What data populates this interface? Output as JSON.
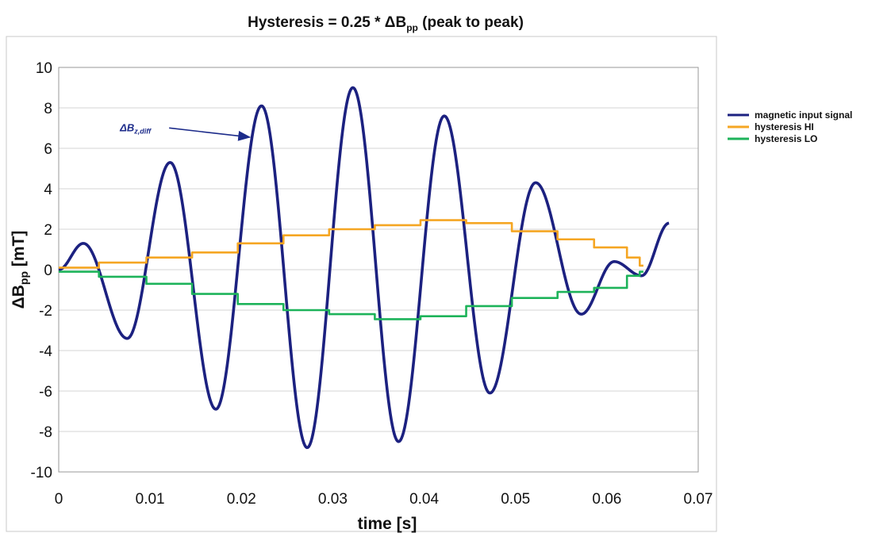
{
  "chart_data": {
    "type": "line",
    "title": "Hysteresis = 0.25 * ΔB",
    "title_sub": "pp",
    "title_suffix": " (peak to peak)",
    "xlabel": "time [s]",
    "ylabel": "ΔB",
    "ylabel_sub": "pp",
    "ylabel_suffix": " [mT]",
    "xlim": [
      0,
      0.07
    ],
    "ylim": [
      -10,
      10
    ],
    "x_ticks": [
      0,
      0.01,
      0.02,
      0.03,
      0.04,
      0.05,
      0.06,
      0.07
    ],
    "y_ticks": [
      -10,
      -8,
      -6,
      -4,
      -2,
      0,
      2,
      4,
      6,
      8,
      10
    ],
    "x_tick_labels": [
      "0",
      "0.01",
      "0.02",
      "0.03",
      "0.04",
      "0.05",
      "0.06",
      "0.07"
    ],
    "y_tick_labels": [
      "-10",
      "-8",
      "-6",
      "-4",
      "-2",
      "0",
      "2",
      "4",
      "6",
      "8",
      "10"
    ],
    "grid": "horizontal",
    "legend_position": "right",
    "annotation": {
      "text": "ΔB",
      "sub": "z,diff",
      "x": 0.0067,
      "y": 6.85,
      "arrow_to": [
        0.0209,
        6.55
      ]
    },
    "series": [
      {
        "name": "magnetic input signal",
        "color": "#1c2180",
        "x": [
          0,
          0.0027,
          0.0075,
          0.0122,
          0.0172,
          0.0222,
          0.0272,
          0.0322,
          0.0372,
          0.0422,
          0.0472,
          0.0522,
          0.0572,
          0.0608,
          0.0638,
          0.0668
        ],
        "y": [
          0,
          1.3,
          -3.4,
          5.3,
          -6.9,
          8.1,
          -8.8,
          9.0,
          -8.5,
          7.6,
          -6.1,
          4.3,
          -2.2,
          0.4,
          -0.3,
          2.3
        ]
      },
      {
        "name": "hysteresis HI",
        "color": "#f5a623",
        "step_x": [
          0,
          0.0044,
          0.0096,
          0.0146,
          0.0196,
          0.0246,
          0.0296,
          0.0346,
          0.0396,
          0.0446,
          0.0496,
          0.0546,
          0.0586,
          0.0622,
          0.0636
        ],
        "y": [
          0.1,
          0.35,
          0.6,
          0.85,
          1.3,
          1.7,
          2.0,
          2.2,
          2.45,
          2.3,
          1.9,
          1.5,
          1.1,
          0.6,
          0.2
        ]
      },
      {
        "name": "hysteresis LO",
        "color": "#1db35a",
        "step_x": [
          0,
          0.0044,
          0.0096,
          0.0146,
          0.0196,
          0.0246,
          0.0296,
          0.0346,
          0.0396,
          0.0446,
          0.0496,
          0.0546,
          0.0586,
          0.0622,
          0.0636
        ],
        "y": [
          -0.1,
          -0.35,
          -0.7,
          -1.2,
          -1.7,
          -2.0,
          -2.2,
          -2.45,
          -2.3,
          -1.8,
          -1.4,
          -1.1,
          -0.9,
          -0.3,
          -0.1
        ]
      }
    ]
  }
}
